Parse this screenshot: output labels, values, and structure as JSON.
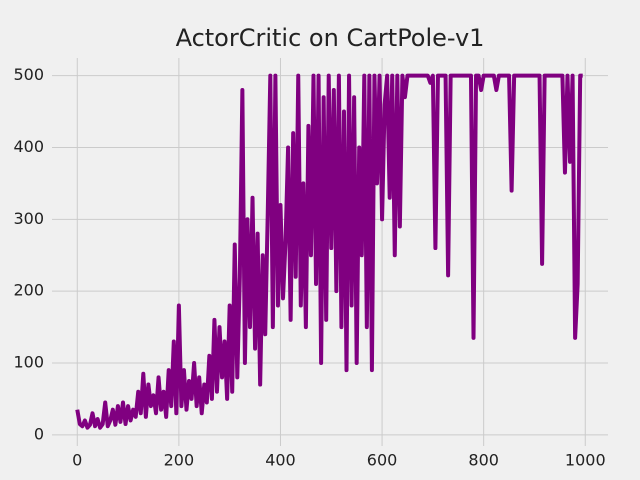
{
  "chart_data": {
    "type": "line",
    "title": "ActorCritic on CartPole-v1",
    "color": "#800080",
    "grid": true,
    "xlim": [
      -49.75,
      1044.75
    ],
    "ylim": [
      -15.55,
      524.55
    ],
    "xticks": [
      0,
      200,
      400,
      600,
      800,
      1000
    ],
    "yticks": [
      0,
      100,
      200,
      300,
      400,
      500
    ],
    "x": [
      0,
      5,
      10,
      15,
      20,
      25,
      30,
      35,
      40,
      45,
      50,
      55,
      60,
      65,
      70,
      75,
      80,
      85,
      90,
      95,
      100,
      105,
      110,
      115,
      120,
      125,
      130,
      135,
      140,
      145,
      150,
      155,
      160,
      165,
      170,
      175,
      180,
      185,
      190,
      195,
      200,
      205,
      210,
      215,
      220,
      225,
      230,
      235,
      240,
      245,
      250,
      255,
      260,
      265,
      270,
      275,
      280,
      285,
      290,
      295,
      300,
      305,
      310,
      315,
      320,
      325,
      330,
      335,
      340,
      345,
      350,
      355,
      360,
      365,
      370,
      375,
      380,
      385,
      390,
      395,
      400,
      405,
      410,
      415,
      420,
      425,
      430,
      435,
      440,
      445,
      450,
      455,
      460,
      465,
      470,
      475,
      480,
      485,
      490,
      495,
      500,
      505,
      510,
      515,
      520,
      525,
      530,
      535,
      540,
      545,
      550,
      555,
      560,
      565,
      570,
      575,
      580,
      585,
      590,
      595,
      600,
      605,
      610,
      615,
      620,
      625,
      630,
      635,
      640,
      645,
      650,
      655,
      660,
      665,
      670,
      675,
      680,
      685,
      690,
      695,
      700,
      705,
      710,
      715,
      720,
      725,
      730,
      735,
      740,
      745,
      750,
      755,
      760,
      765,
      770,
      775,
      780,
      785,
      790,
      795,
      800,
      805,
      810,
      815,
      820,
      825,
      830,
      835,
      840,
      845,
      850,
      855,
      860,
      865,
      870,
      875,
      880,
      885,
      890,
      895,
      900,
      905,
      910,
      915,
      920,
      925,
      930,
      935,
      940,
      945,
      950,
      955,
      960,
      965,
      970,
      975,
      980,
      985,
      990,
      995
    ],
    "values": [
      35,
      15,
      12,
      20,
      10,
      14,
      30,
      12,
      22,
      10,
      15,
      45,
      12,
      20,
      35,
      14,
      40,
      18,
      45,
      15,
      40,
      20,
      35,
      25,
      60,
      30,
      85,
      25,
      70,
      40,
      55,
      30,
      80,
      35,
      60,
      25,
      90,
      40,
      130,
      30,
      180,
      40,
      90,
      35,
      75,
      50,
      100,
      40,
      80,
      30,
      70,
      45,
      110,
      50,
      160,
      60,
      150,
      80,
      130,
      50,
      180,
      60,
      265,
      80,
      220,
      480,
      100,
      300,
      150,
      330,
      120,
      280,
      70,
      250,
      140,
      310,
      500,
      150,
      500,
      180,
      320,
      190,
      270,
      400,
      160,
      420,
      220,
      500,
      180,
      350,
      150,
      430,
      250,
      500,
      210,
      500,
      100,
      470,
      160,
      500,
      260,
      480,
      200,
      500,
      150,
      450,
      90,
      500,
      180,
      470,
      100,
      400,
      250,
      500,
      150,
      500,
      90,
      500,
      350,
      500,
      300,
      460,
      500,
      330,
      500,
      250,
      500,
      290,
      500,
      470,
      500,
      500,
      500,
      500,
      500,
      500,
      500,
      500,
      500,
      490,
      500,
      260,
      500,
      500,
      500,
      500,
      222,
      500,
      500,
      500,
      500,
      500,
      500,
      500,
      500,
      500,
      135,
      500,
      500,
      480,
      500,
      500,
      500,
      500,
      500,
      480,
      500,
      500,
      500,
      500,
      500,
      340,
      500,
      500,
      500,
      500,
      500,
      500,
      500,
      500,
      500,
      500,
      500,
      238,
      500,
      500,
      500,
      500,
      500,
      500,
      500,
      500,
      365,
      500,
      380,
      500,
      135,
      210,
      500,
      500
    ]
  }
}
